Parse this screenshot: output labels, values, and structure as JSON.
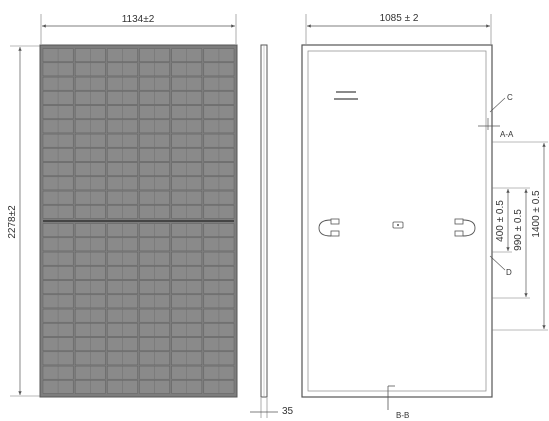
{
  "front_view": {
    "width_label": "1134±2",
    "height_label": "2278±2",
    "columns": 6,
    "cell_rows_per_half": 12
  },
  "side_view": {
    "thickness_label": "35"
  },
  "back_view": {
    "width_label": "1085 ± 2",
    "dim_400_label": "400 ± 0.5",
    "dim_990_label": "990 ± 0.5",
    "dim_1400_label": "1400 ± 0.5",
    "label_c": "C",
    "label_d": "D",
    "label_aa": "A-A",
    "label_bb": "B-B"
  },
  "colors": {
    "line": "#555555",
    "cell_fill": "#8a8a8a",
    "cell_dark": "#5a5a5a",
    "frame": "#777777"
  }
}
